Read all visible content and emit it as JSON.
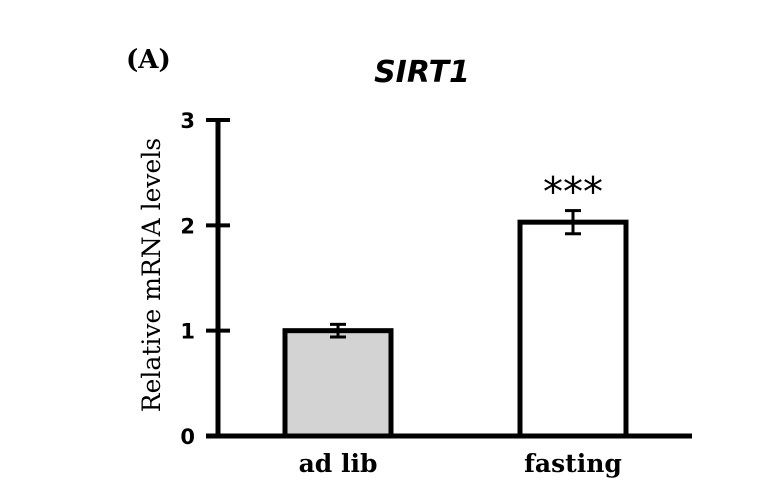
{
  "panel_label": "(A)",
  "chart_data": {
    "type": "bar",
    "title": "SIRT1",
    "xlabel": "",
    "ylabel": "Relative mRNA levels",
    "ylim": [
      0,
      3
    ],
    "yticks": [
      "0",
      "1",
      "2",
      "3"
    ],
    "categories": [
      "ad lib",
      "fasting"
    ],
    "values": [
      1.0,
      2.03
    ],
    "errors": [
      0.06,
      0.11
    ],
    "bar_colors": [
      "#d3d3d3",
      "#ffffff"
    ],
    "annotations": [
      "",
      "***"
    ],
    "grid": false,
    "legend": "none"
  }
}
